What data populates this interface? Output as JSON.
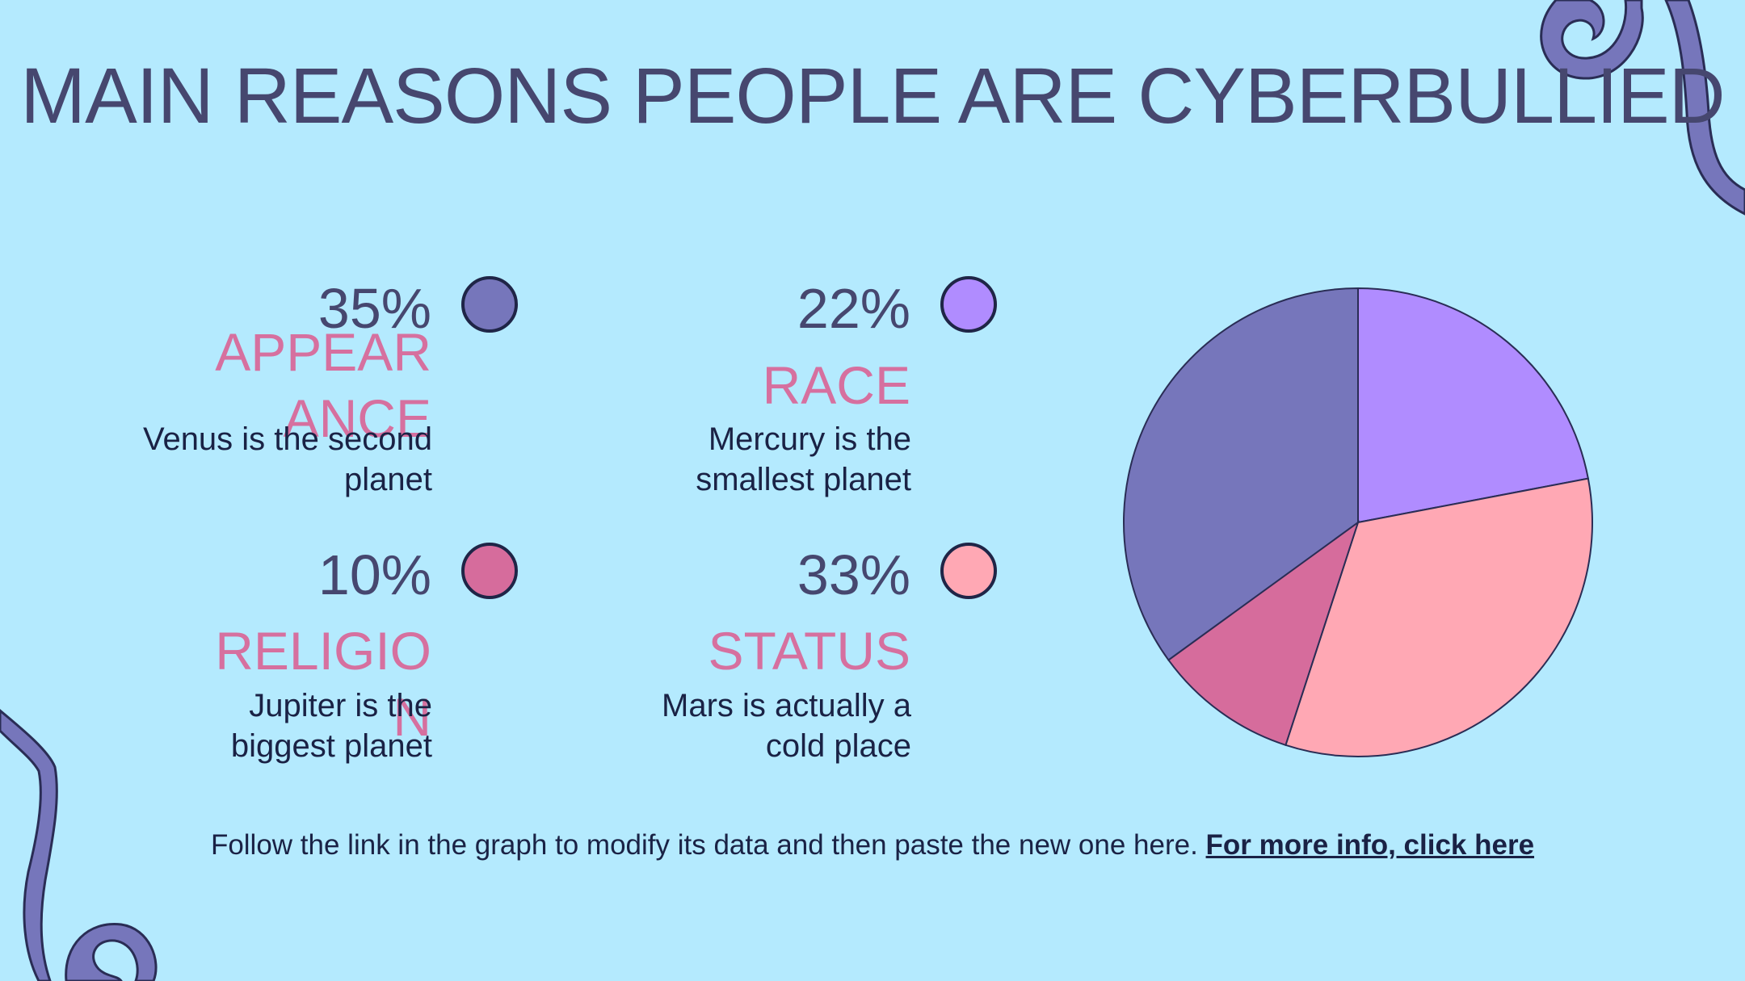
{
  "title": "MAIN REASONS PEOPLE ARE CYBERBULLIED",
  "items": [
    {
      "percent": "35%",
      "label": "APPEARANCE",
      "description": "Venus is the second planet",
      "color": "#7676bb"
    },
    {
      "percent": "22%",
      "label": "RACE",
      "description": "Mercury is the smallest planet",
      "color": "#b08cff"
    },
    {
      "percent": "10%",
      "label": "RELIGION",
      "description": "Jupiter is the biggest planet",
      "color": "#d66c9c"
    },
    {
      "percent": "33%",
      "label": "STATUS",
      "description": "Mars is actually a cold place",
      "color": "#ffa8b4"
    }
  ],
  "footer": {
    "text": "Follow the link in the graph to modify its data and then paste the new one here.",
    "link": "For more info, click here"
  },
  "chart_data": {
    "type": "pie",
    "categories": [
      "RACE",
      "STATUS",
      "RELIGION",
      "APPEARANCE"
    ],
    "values": [
      22,
      33,
      10,
      35
    ],
    "colors": [
      "#b08cff",
      "#ffa8b4",
      "#d66c9c",
      "#7676bb"
    ]
  }
}
